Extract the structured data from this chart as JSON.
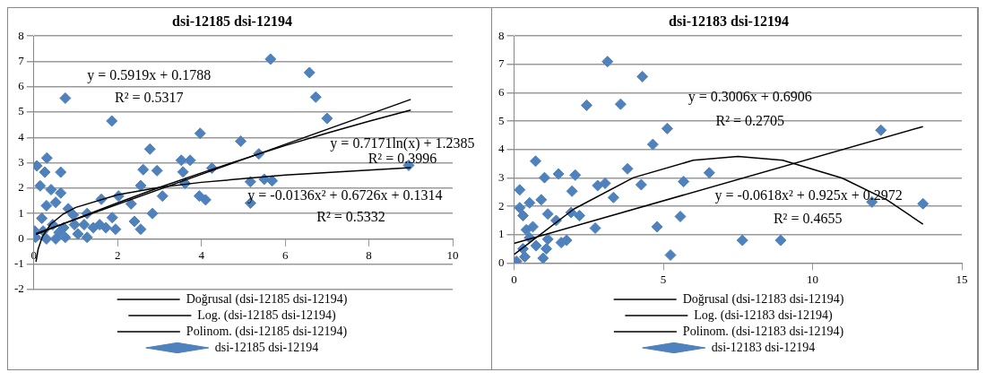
{
  "chart_data": [
    {
      "type": "scatter",
      "title": "dsi-12185 dsi-12194",
      "xlim": [
        0,
        10
      ],
      "xticks": [
        0,
        2,
        4,
        6,
        8,
        10
      ],
      "ylim": [
        -2,
        8
      ],
      "yticks": [
        -2,
        -1,
        0,
        1,
        2,
        3,
        4,
        5,
        6,
        7,
        8
      ],
      "grid": "y",
      "legend": "bottom",
      "series": [
        {
          "name": "dsi-12185 dsi-12194",
          "marker": "diamond",
          "color": "#4f81bd",
          "x": [
            0.75,
            1.86,
            5.65,
            6.58,
            6.73,
            7.0,
            8.95,
            3.97,
            4.94,
            5.37,
            2.77,
            3.52,
            3.73,
            3.61,
            4.25,
            5.17,
            5.5,
            5.69,
            5.17,
            3.95,
            4.1,
            3.07,
            2.94,
            2.61,
            2.55,
            2.83,
            3.56,
            2.02,
            2.32,
            2.4,
            2.55,
            1.95,
            1.72,
            1.87,
            1.61,
            1.27,
            1.27,
            1.05,
            0.31,
            0.07,
            0.26,
            0.64,
            0.15,
            0.41,
            0.64,
            0.3,
            0.52,
            0.82,
            0.19,
            0.45,
            0.71,
            0.04,
            0.3,
            0.52,
            0.75,
            0.02,
            0.97,
            1.42,
            1.57,
            1.2,
            0.94,
            0.22,
            0.6
          ],
          "values": [
            5.55,
            4.65,
            7.09,
            6.56,
            5.59,
            4.75,
            2.9,
            4.16,
            3.85,
            3.35,
            3.54,
            3.1,
            3.1,
            2.19,
            2.79,
            2.25,
            2.35,
            2.29,
            1.41,
            1.69,
            1.54,
            1.69,
            2.69,
            2.73,
            2.1,
            1.0,
            2.64,
            1.69,
            1.38,
            0.69,
            0.38,
            0.38,
            0.44,
            0.84,
            1.56,
            1.0,
            0.06,
            0.19,
            3.19,
            2.88,
            2.63,
            2.63,
            2.09,
            1.94,
            1.81,
            1.31,
            1.44,
            1.19,
            0.81,
            0.56,
            0.44,
            0.06,
            0.0,
            0.0,
            0.06,
            0.31,
            0.56,
            0.44,
            0.56,
            0.56,
            0.94,
            0.31,
            0.25
          ]
        },
        {
          "name": "Doğrusal (dsi-12185 dsi-12194)",
          "type": "line",
          "color": "#000000",
          "x": [
            0.05,
            9
          ],
          "values": [
            0.21,
            5.5
          ]
        },
        {
          "name": "Log. (dsi-12185 dsi-12194)",
          "type": "line",
          "color": "#000000",
          "x": [
            0.05,
            0.1,
            0.2,
            0.4,
            0.7,
            1,
            2,
            3,
            4,
            6,
            9
          ],
          "values": [
            -0.91,
            -0.41,
            0.08,
            0.58,
            0.98,
            1.24,
            1.74,
            2.03,
            2.23,
            2.52,
            2.81
          ]
        },
        {
          "name": "Polinom. (dsi-12185 dsi-12194)",
          "type": "line",
          "color": "#000000",
          "x": [
            0.05,
            1,
            2,
            3,
            4,
            5,
            6,
            7,
            8,
            9
          ],
          "values": [
            0.17,
            0.79,
            1.42,
            2.03,
            2.6,
            3.15,
            3.68,
            4.17,
            4.64,
            5.08
          ]
        }
      ],
      "annotations": [
        "y = 0.5919x + 0.1788",
        "R² = 0.5317",
        "y = 0.7171ln(x) + 1.2385",
        "R² = 0.3996",
        "y = -0.0136x² + 0.6726x + 0.1314",
        "R² = 0.5332"
      ]
    },
    {
      "type": "scatter",
      "title": "dsi-12183 dsi-12194",
      "xlim": [
        0,
        15
      ],
      "xticks": [
        0,
        5,
        10,
        15
      ],
      "ylim": [
        0,
        8
      ],
      "yticks": [
        0,
        1,
        2,
        3,
        4,
        5,
        6,
        7,
        8
      ],
      "grid": "y",
      "legend": "bottom",
      "series": [
        {
          "name": "dsi-12183 dsi-12194",
          "marker": "diamond",
          "color": "#4f81bd",
          "x": [
            3.13,
            4.3,
            2.43,
            3.57,
            5.13,
            12.29,
            4.65,
            3.8,
            0.72,
            1.02,
            1.49,
            2.05,
            1.94,
            0.19,
            2.8,
            3.05,
            3.33,
            4.26,
            5.68,
            6.54,
            11.99,
            13.7,
            5.57,
            4.79,
            2.72,
            5.24,
            7.65,
            8.93,
            1.76,
            1.58,
            2.19,
            1.91,
            0.91,
            0.52,
            0.19,
            0.3,
            1.13,
            1.41,
            0.63,
            0.41,
            1.13,
            0.97,
            0.74,
            0.3,
            0.08,
            0.36,
            0.0,
            1.08,
            0.52
          ],
          "values": [
            7.1,
            6.57,
            5.56,
            5.6,
            4.74,
            4.68,
            4.18,
            3.32,
            3.59,
            3.01,
            3.14,
            3.1,
            2.53,
            2.58,
            2.73,
            2.81,
            2.31,
            2.76,
            2.87,
            3.18,
            2.15,
            2.09,
            1.64,
            1.28,
            1.23,
            0.28,
            0.8,
            0.8,
            0.8,
            0.72,
            1.67,
            1.78,
            2.23,
            2.12,
            1.95,
            1.67,
            1.73,
            1.5,
            1.28,
            1.17,
            0.84,
            0.17,
            0.61,
            0.5,
            0.06,
            0.22,
            0.03,
            0.5,
            0.89
          ]
        },
        {
          "name": "Doğrusal (dsi-12183 dsi-12194)",
          "type": "line",
          "color": "#000000",
          "x": [
            0,
            13.7
          ],
          "values": [
            0.69,
            4.81
          ]
        },
        {
          "name": "Log. (dsi-12183 dsi-12194)",
          "type": "line",
          "color": "#000000"
        },
        {
          "name": "Polinom. (dsi-12183 dsi-12194)",
          "type": "line",
          "color": "#000000",
          "x": [
            0,
            2,
            4,
            6,
            7.5,
            9,
            11,
            12.5,
            13.7
          ],
          "values": [
            0.3,
            1.9,
            3.01,
            3.62,
            3.76,
            3.62,
            2.99,
            2.22,
            1.37
          ]
        }
      ],
      "annotations": [
        "y = 0.3006x + 0.6906",
        "R² = 0.2705",
        "y = -0.0618x² + 0.925x + 0.2972",
        "R² = 0.4655"
      ]
    }
  ]
}
